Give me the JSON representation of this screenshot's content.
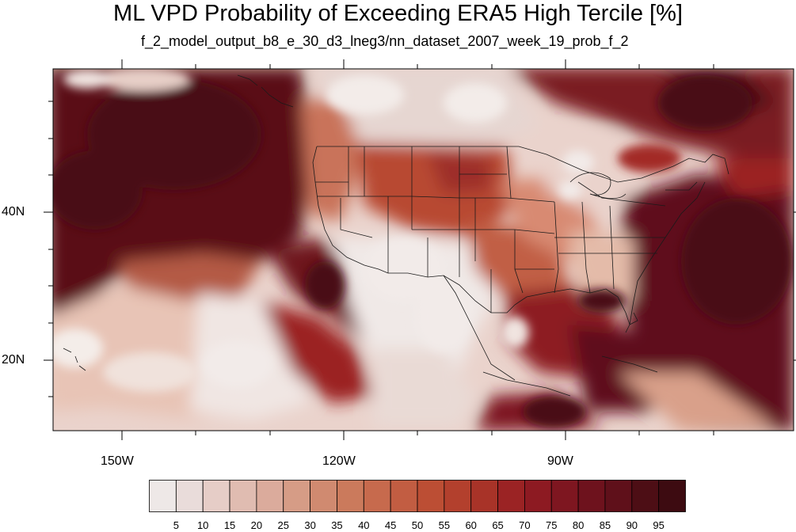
{
  "title": "ML VPD Probability of Exceeding ERA5 High Tercile [%]",
  "subtitle": "f_2_model_output_b8_e_30_d3_lneg3/nn_dataset_2007_week_19_prob_f_2",
  "axes": {
    "x_ticks": [
      {
        "value": -150,
        "label": "150W"
      },
      {
        "value": -120,
        "label": "120W"
      },
      {
        "value": -90,
        "label": "90W"
      }
    ],
    "y_ticks": [
      {
        "value": 40,
        "label": "40N"
      },
      {
        "value": 20,
        "label": "20N"
      }
    ]
  },
  "colorbar": {
    "labels": [
      "5",
      "10",
      "15",
      "20",
      "25",
      "30",
      "35",
      "40",
      "45",
      "50",
      "55",
      "60",
      "65",
      "70",
      "75",
      "80",
      "85",
      "90",
      "95"
    ],
    "colors": [
      "#eee8e7",
      "#e9dcda",
      "#e6cdc7",
      "#e0bcb1",
      "#dbab9c",
      "#d69c86",
      "#d08a70",
      "#cb7a5c",
      "#c76a4d",
      "#c25d42",
      "#bc4e34",
      "#b3402d",
      "#a83328",
      "#9b2324",
      "#8d1a22",
      "#7e1620",
      "#6e121d",
      "#5f101a",
      "#4d0e15",
      "#3d0b11"
    ]
  }
}
